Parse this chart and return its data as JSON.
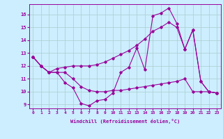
{
  "background_color": "#cceeff",
  "grid_color": "#aacccc",
  "line_color": "#990099",
  "xlim": [
    -0.5,
    23.5
  ],
  "ylim": [
    8.7,
    16.8
  ],
  "yticks": [
    9,
    10,
    11,
    12,
    13,
    14,
    15,
    16
  ],
  "xticks": [
    0,
    1,
    2,
    3,
    4,
    5,
    6,
    7,
    8,
    9,
    10,
    11,
    12,
    13,
    14,
    15,
    16,
    17,
    18,
    19,
    20,
    21,
    22,
    23
  ],
  "xlabel": "Windchill (Refroidissement éolien,°C)",
  "s1x": [
    0,
    1,
    2,
    3,
    4,
    5,
    6,
    7,
    8,
    9,
    10,
    11,
    12,
    13,
    14,
    15,
    16,
    17,
    18,
    19,
    20,
    21,
    22,
    23
  ],
  "s1y": [
    12.7,
    12.0,
    11.5,
    11.5,
    10.7,
    10.3,
    9.1,
    8.9,
    9.3,
    9.4,
    9.9,
    11.5,
    11.9,
    13.4,
    11.7,
    15.9,
    16.1,
    16.5,
    15.3,
    13.3,
    14.8,
    10.8,
    10.0,
    9.9
  ],
  "s2x": [
    0,
    1,
    2,
    3,
    4,
    5,
    6,
    7,
    8,
    9,
    10,
    11,
    12,
    13,
    14,
    15,
    16,
    17,
    18,
    19,
    20,
    21,
    22,
    23
  ],
  "s2y": [
    12.7,
    12.0,
    11.5,
    11.8,
    11.9,
    12.0,
    12.0,
    12.0,
    12.1,
    12.3,
    12.6,
    12.9,
    13.2,
    13.6,
    14.1,
    14.7,
    15.0,
    15.4,
    15.0,
    13.3,
    14.8,
    10.8,
    10.0,
    9.9
  ],
  "s3x": [
    0,
    1,
    2,
    3,
    4,
    5,
    6,
    7,
    8,
    9,
    10,
    11,
    12,
    13,
    14,
    15,
    16,
    17,
    18,
    19,
    20,
    21,
    22,
    23
  ],
  "s3y": [
    12.7,
    12.0,
    11.5,
    11.5,
    11.5,
    11.0,
    10.4,
    10.1,
    10.0,
    10.0,
    10.1,
    10.1,
    10.2,
    10.3,
    10.4,
    10.5,
    10.6,
    10.7,
    10.8,
    11.0,
    10.0,
    10.0,
    10.0,
    9.9
  ]
}
